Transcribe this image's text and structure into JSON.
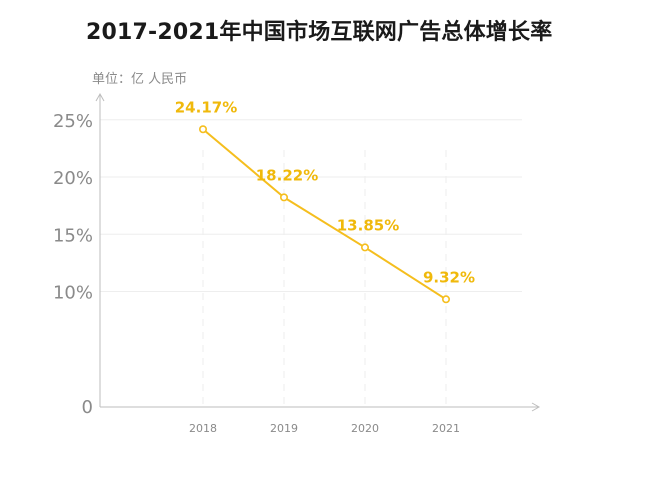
{
  "chart_data": {
    "type": "line",
    "title": "2017-2021年中国市场互联网广告总体增长率",
    "unit_label": "单位：亿 人民币",
    "x": [
      "2018",
      "2019",
      "2020",
      "2021"
    ],
    "series": [
      {
        "values": [
          24.17,
          18.22,
          13.85,
          9.32
        ],
        "labels": [
          "24.17%",
          "18.22%",
          "13.85%",
          "9.32%"
        ]
      }
    ],
    "y_ticks": [
      {
        "value": 0,
        "label": "0"
      },
      {
        "value": 10,
        "label": "10%"
      },
      {
        "value": 15,
        "label": "15%"
      },
      {
        "value": 20,
        "label": "20%"
      },
      {
        "value": 25,
        "label": "25%"
      }
    ],
    "ylim": [
      0,
      30
    ],
    "grid": true,
    "colors": {
      "series": "#f5be1e",
      "label": "#f0b90b",
      "axis": "#bdbdbd",
      "grid": "#eeeeee",
      "tick_text": "#8a8a8a"
    }
  }
}
